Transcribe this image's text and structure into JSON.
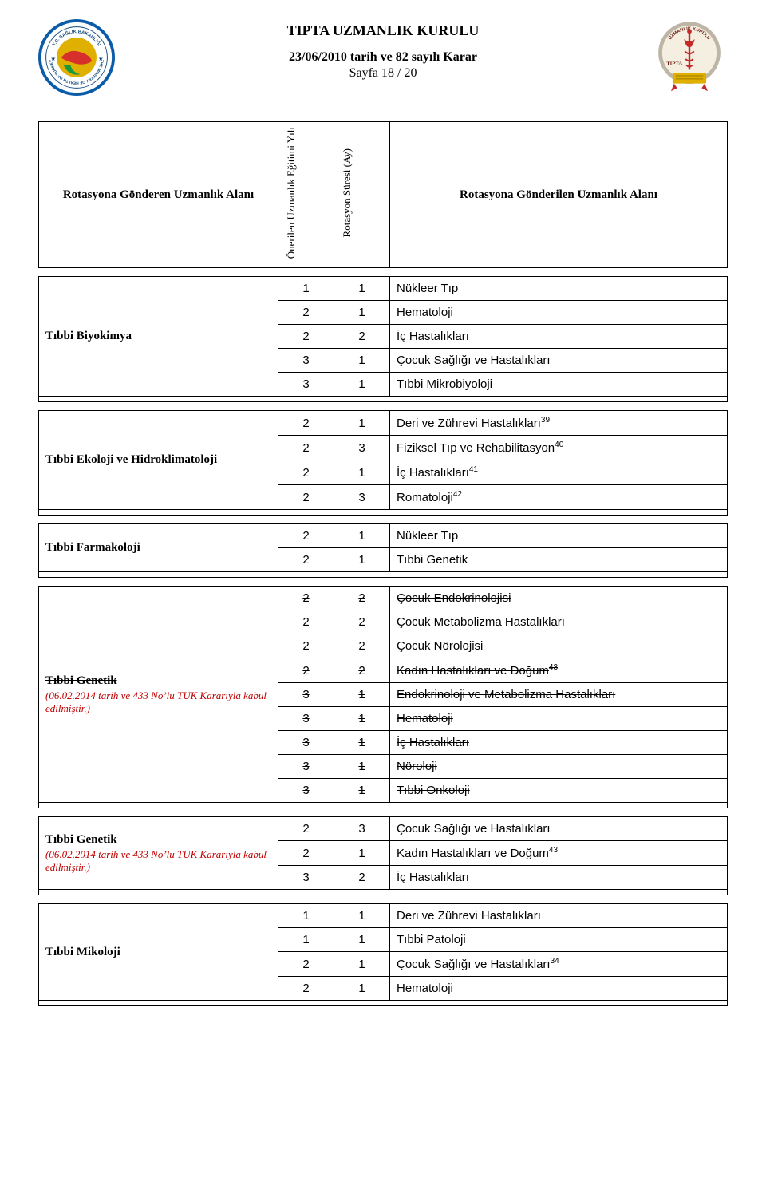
{
  "header": {
    "title": "TIPTA UZMANLIK KURULU",
    "subtitle": "23/06/2010 tarih ve 82 sayılı Karar",
    "page_line": "Sayfa 18 / 20",
    "left_logo_alt": "THE MINISTRY OF HEALTH OF TURKEY — SAĞLIK BAKANLIĞI",
    "right_logo_alt": "TIPTA UZMANLIK KURULU"
  },
  "columns": {
    "header_left": "Rotasyona Gönderen Uzmanlık Alanı",
    "header_c2": "Önerilen Uzmanlık Eğitimi Yılı",
    "header_c3": "Rotasyon Süresi (Ay)",
    "header_right": "Rotasyona Gönderilen Uzmanlık Alanı"
  },
  "groups": [
    {
      "left": "Tıbbi Biyokimya",
      "note": "",
      "rows": [
        {
          "c2": "1",
          "c3": "1",
          "val": "Nükleer Tıp",
          "strike": false,
          "sup": ""
        },
        {
          "c2": "2",
          "c3": "1",
          "val": "Hematoloji",
          "strike": false,
          "sup": ""
        },
        {
          "c2": "2",
          "c3": "2",
          "val": "İç Hastalıkları",
          "strike": false,
          "sup": ""
        },
        {
          "c2": "3",
          "c3": "1",
          "val": "Çocuk Sağlığı ve Hastalıkları",
          "strike": false,
          "sup": ""
        },
        {
          "c2": "3",
          "c3": "1",
          "val": "Tıbbi Mikrobiyoloji",
          "strike": false,
          "sup": ""
        }
      ]
    },
    {
      "left": "Tıbbi Ekoloji ve Hidroklimatoloji",
      "note": "",
      "rows": [
        {
          "c2": "2",
          "c3": "1",
          "val": "Deri ve Zührevi Hastalıkları",
          "strike": false,
          "sup": "39"
        },
        {
          "c2": "2",
          "c3": "3",
          "val": "Fiziksel Tıp ve Rehabilitasyon",
          "strike": false,
          "sup": "40"
        },
        {
          "c2": "2",
          "c3": "1",
          "val": "İç Hastalıkları",
          "strike": false,
          "sup": "41"
        },
        {
          "c2": "2",
          "c3": "3",
          "val": "Romatoloji",
          "strike": false,
          "sup": "42"
        }
      ]
    },
    {
      "left": "Tıbbi Farmakoloji",
      "note": "",
      "rows": [
        {
          "c2": "2",
          "c3": "1",
          "val": "Nükleer Tıp",
          "strike": false,
          "sup": ""
        },
        {
          "c2": "2",
          "c3": "1",
          "val": "Tıbbi Genetik",
          "strike": false,
          "sup": ""
        }
      ]
    },
    {
      "left": "Tıbbi Genetik",
      "note": "(06.02.2014 tarih ve 433 No’lu TUK Kararıyla kabul edilmiştir.)",
      "left_strike": true,
      "rows": [
        {
          "c2": "2",
          "c3": "2",
          "val": "Çocuk Endokrinolojisi",
          "strike": true,
          "sup": ""
        },
        {
          "c2": "2",
          "c3": "2",
          "val": "Çocuk Metabolizma Hastalıkları",
          "strike": true,
          "sup": ""
        },
        {
          "c2": "2",
          "c3": "2",
          "val": "Çocuk Nörolojisi",
          "strike": true,
          "sup": ""
        },
        {
          "c2": "2",
          "c3": "2",
          "val": "Kadın Hastalıkları ve Doğum",
          "strike": true,
          "sup": "43"
        },
        {
          "c2": "3",
          "c3": "1",
          "val": "Endokrinoloji ve Metabolizma Hastalıkları",
          "strike": true,
          "sup": ""
        },
        {
          "c2": "3",
          "c3": "1",
          "val": "Hematoloji",
          "strike": true,
          "sup": ""
        },
        {
          "c2": "3",
          "c3": "1",
          "val": "İç Hastalıkları",
          "strike": true,
          "sup": ""
        },
        {
          "c2": "3",
          "c3": "1",
          "val": "Nöroloji",
          "strike": true,
          "sup": ""
        },
        {
          "c2": "3",
          "c3": "1",
          "val": "Tıbbi Onkoloji",
          "strike": true,
          "sup": ""
        }
      ]
    },
    {
      "left": "Tıbbi Genetik",
      "note": "(06.02.2014 tarih ve 433 No’lu TUK Kararıyla kabul edilmiştir.)",
      "rows": [
        {
          "c2": "2",
          "c3": "3",
          "val": "Çocuk Sağlığı ve Hastalıkları",
          "strike": false,
          "sup": ""
        },
        {
          "c2": "2",
          "c3": "1",
          "val": "Kadın Hastalıkları ve Doğum",
          "strike": false,
          "sup": "43"
        },
        {
          "c2": "3",
          "c3": "2",
          "val": "İç Hastalıkları",
          "strike": false,
          "sup": ""
        }
      ]
    },
    {
      "left": "Tıbbi Mikoloji",
      "note": "",
      "rows": [
        {
          "c2": "1",
          "c3": "1",
          "val": "Deri ve Zührevi Hastalıkları",
          "strike": false,
          "sup": ""
        },
        {
          "c2": "1",
          "c3": "1",
          "val": "Tıbbi Patoloji",
          "strike": false,
          "sup": ""
        },
        {
          "c2": "2",
          "c3": "1",
          "val": "Çocuk Sağlığı ve Hastalıkları",
          "strike": false,
          "sup": "34"
        },
        {
          "c2": "2",
          "c3": "1",
          "val": "Hematoloji",
          "strike": false,
          "sup": ""
        }
      ]
    }
  ],
  "style": {
    "background": "#ffffff",
    "text_color": "#000000",
    "note_color": "#c00000",
    "border_color": "#000000",
    "left_logo_colors": {
      "ring_outer": "#0a5ca8",
      "ring_text": "#104a7d",
      "panel": "#e0b000",
      "map": "#d72f2c",
      "green": "#1a9a3c",
      "white": "#ffffff"
    },
    "right_logo_colors": {
      "ring": "#bdb6a6",
      "text": "#6d1a12",
      "caduceus": "#c62828",
      "base": "#e0b000",
      "ribbon": "#c62828"
    }
  }
}
